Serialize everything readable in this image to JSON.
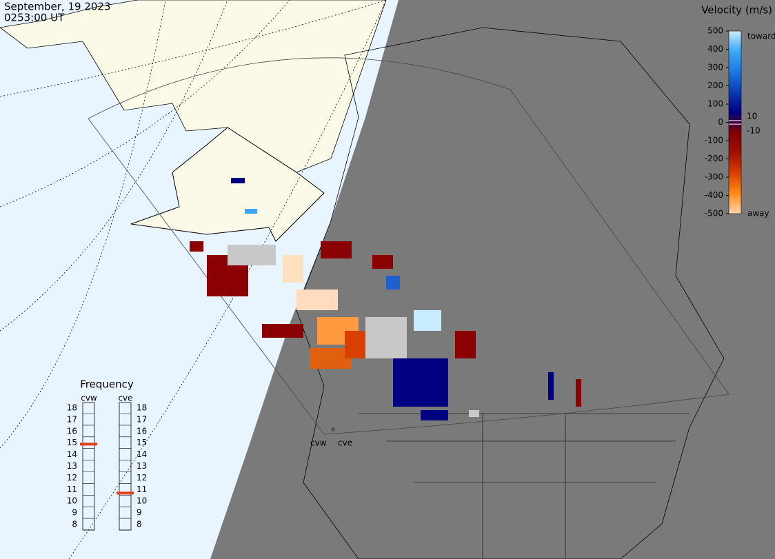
{
  "header": {
    "date": "September, 19 2023",
    "time": "0253:00 UT"
  },
  "velocity_scale": {
    "title": "Velocity (m/s)",
    "lim": [
      -500,
      500
    ],
    "ticks": [
      500,
      400,
      300,
      200,
      100,
      0,
      -100,
      -200,
      -300,
      -400,
      -500
    ],
    "inner_ticks": [
      10,
      -10
    ],
    "toward": "toward",
    "away": "away",
    "colors": [
      "#ffd6ad",
      "#ff8c1a",
      "#d94000",
      "#a01000",
      "#800000",
      "#000080",
      "#0a3cb4",
      "#1e78e6",
      "#3ca8f5",
      "#c8ecff"
    ]
  },
  "frequency": {
    "title": "Frequency",
    "lim": [
      8,
      18
    ],
    "ticks": [
      8,
      9,
      10,
      11,
      12,
      13,
      14,
      15,
      16,
      17,
      18
    ],
    "marker_color": "#e0401a",
    "radars": [
      {
        "name": "cvw",
        "value": 14.9
      },
      {
        "name": "cve",
        "value": 10.7
      }
    ]
  },
  "map_labels": [
    "cvw",
    "cve"
  ]
}
